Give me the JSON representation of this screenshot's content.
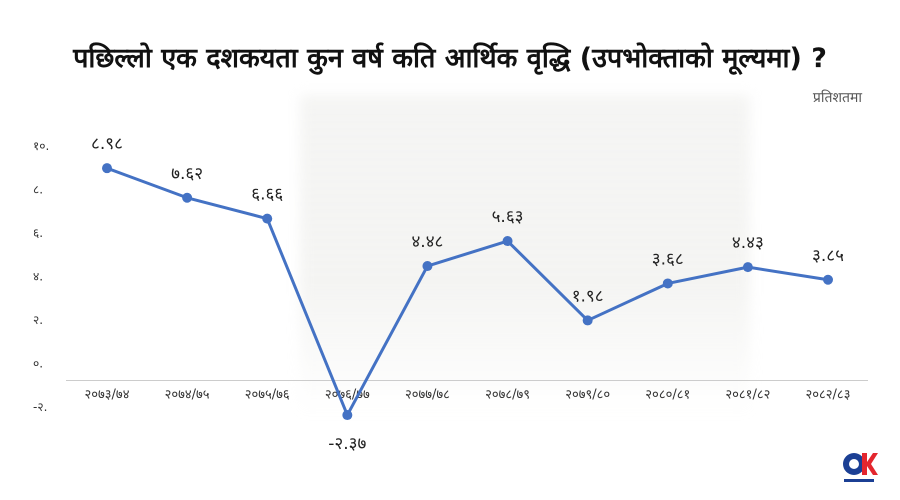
{
  "header": {
    "title": "पछिल्लो एक दशकयता कुन वर्ष कति आर्थिक वृद्धि (उपभोक्ताको मूल्यमा) ?",
    "unit": "प्रतिशतमा"
  },
  "colors": {
    "line": "#4472c4",
    "text": "#333333",
    "grid": "#cccccc"
  },
  "chart_data": {
    "type": "line",
    "categories": [
      "२०७३/७४",
      "२०७४/७५",
      "२०७५/७६",
      "२०७६/७७",
      "२०७७/७८",
      "२०७८/७९",
      "२०७९/८०",
      "२०८०/८१",
      "२०८१/८२",
      "२०८२/८३"
    ],
    "values": [
      8.98,
      7.62,
      6.66,
      -2.37,
      4.48,
      5.63,
      1.98,
      3.68,
      4.43,
      3.85
    ],
    "value_labels": [
      "८.९८",
      "७.६२",
      "६.६६",
      "-२.३७",
      "४.४८",
      "५.६३",
      "१.९८",
      "३.६८",
      "४.४३",
      "३.८५"
    ],
    "yticks": [
      -2,
      0,
      2,
      4,
      6,
      8,
      10
    ],
    "ytick_labels": [
      "-२.",
      "०.",
      "२.",
      "४.",
      "६.",
      "८.",
      "१०."
    ],
    "ylim": [
      -2,
      10
    ],
    "title": "पछिल्लो एक दशकयता कुन वर्ष कति आर्थिक वृद्धि (उपभोक्ताको मूल्यमा) ?",
    "ylabel": "प्रतिशतमा",
    "grid": false
  },
  "logo": {
    "icon": "onlinekhabar-logo",
    "text": "OK"
  }
}
